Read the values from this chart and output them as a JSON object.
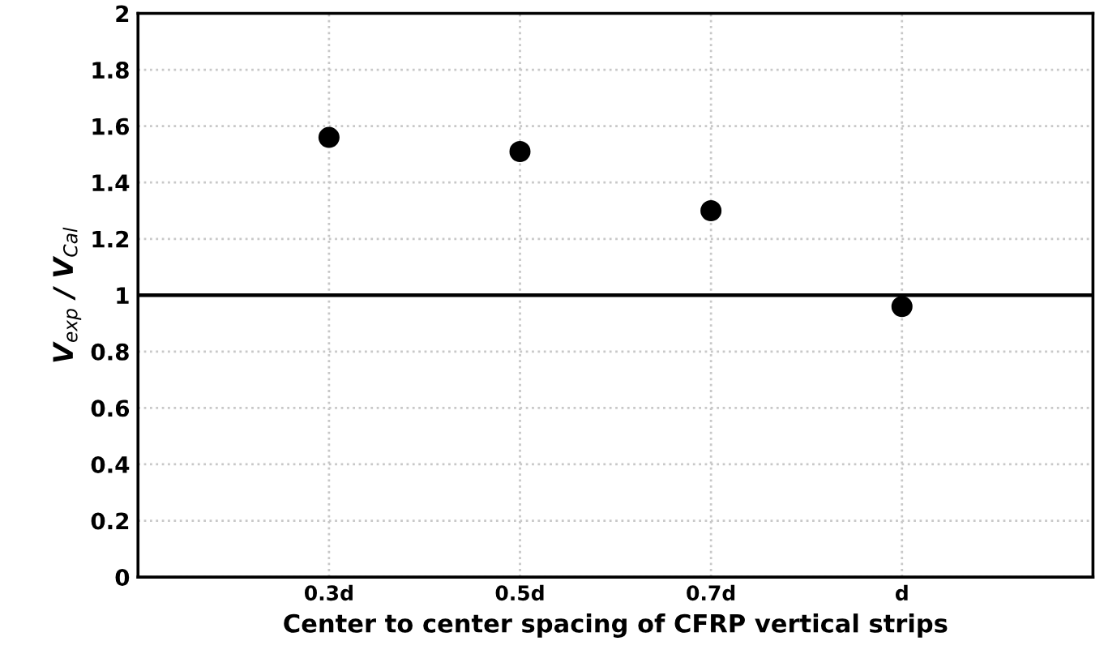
{
  "chart_data": {
    "type": "scatter",
    "categories": [
      "0.3d",
      "0.5d",
      "0.7d",
      "d"
    ],
    "values": [
      1.56,
      1.51,
      1.3,
      0.96
    ],
    "color": "#000000",
    "marker": "circle",
    "ylim": [
      0,
      2
    ],
    "yticks": [
      0,
      0.2,
      0.4,
      0.6,
      0.8,
      1,
      1.2,
      1.4,
      1.6,
      1.8,
      2
    ],
    "ylabel": "V$_{exp}$ / V$_{Cal}$",
    "xlabel": "Center to center spacing of CFRP vertical strips",
    "ref_lines": [
      {
        "axis": "y",
        "value": 1,
        "color": "#000000",
        "line_style": "solid"
      }
    ],
    "grid": true
  }
}
